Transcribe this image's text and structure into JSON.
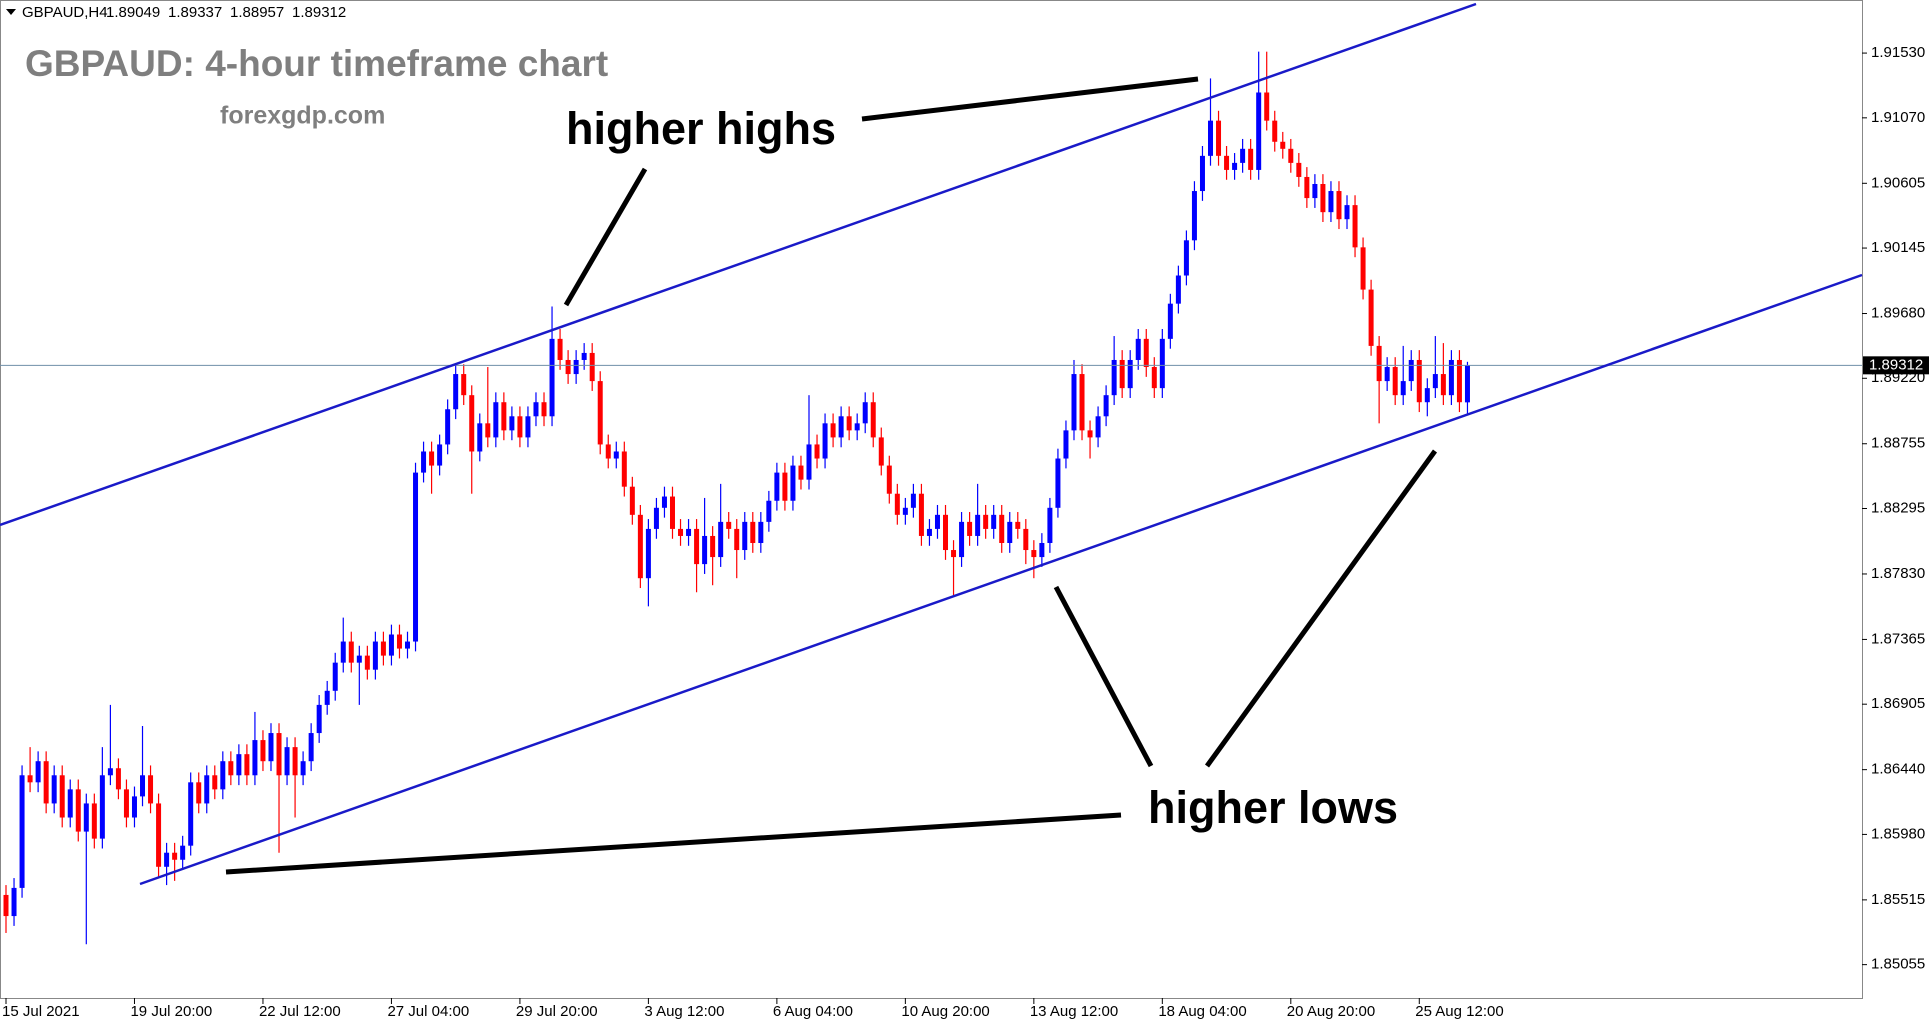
{
  "chart_data": {
    "type": "candlestick",
    "symbol": "GBPAUD,H4",
    "title": "GBPAUD: 4-hour timeframe chart",
    "subtitle": "forexgdp.com",
    "annotations": [
      "higher highs",
      "higher lows"
    ],
    "up_color": "#0000ff",
    "down_color": "#ff0000",
    "ylim": [
      1.84818,
      1.91907
    ],
    "yticks": [
      {
        "value": 1.9153,
        "label": "1.91530"
      },
      {
        "value": 1.9107,
        "label": "1.91070"
      },
      1.90605,
      1.90145,
      {
        "value": 1.8968,
        "label": "1.89680"
      },
      {
        "value": 1.8922,
        "label": "1.89220"
      },
      1.88755,
      1.88295,
      {
        "value": 1.8783,
        "label": "1.87830"
      },
      1.87365,
      1.86905,
      {
        "value": 1.8644,
        "label": "1.86440"
      },
      {
        "value": 1.8598,
        "label": "1.85980"
      },
      1.85515,
      1.85055
    ],
    "categories": [
      "15 Jul 2021",
      null,
      null,
      null,
      null,
      null,
      null,
      null,
      null,
      null,
      null,
      null,
      null,
      null,
      null,
      null,
      "19 Jul 20:00",
      null,
      null,
      null,
      null,
      null,
      null,
      null,
      null,
      null,
      null,
      null,
      null,
      null,
      null,
      null,
      "22 Jul 12:00",
      null,
      null,
      null,
      null,
      null,
      null,
      null,
      null,
      null,
      null,
      null,
      null,
      null,
      null,
      null,
      "27 Jul 04:00",
      null,
      null,
      null,
      null,
      null,
      null,
      null,
      null,
      null,
      null,
      null,
      null,
      null,
      null,
      null,
      "29 Jul 20:00",
      null,
      null,
      null,
      null,
      null,
      null,
      null,
      null,
      null,
      null,
      null,
      null,
      null,
      null,
      null,
      "3 Aug 12:00",
      null,
      null,
      null,
      null,
      null,
      null,
      null,
      null,
      null,
      null,
      null,
      null,
      null,
      null,
      null,
      "6 Aug 04:00",
      null,
      null,
      null,
      null,
      null,
      null,
      null,
      null,
      null,
      null,
      null,
      null,
      null,
      null,
      null,
      "10 Aug 20:00",
      null,
      null,
      null,
      null,
      null,
      null,
      null,
      null,
      null,
      null,
      null,
      null,
      null,
      null,
      null,
      "13 Aug 12:00",
      null,
      null,
      null,
      null,
      null,
      null,
      null,
      null,
      null,
      null,
      null,
      null,
      null,
      null,
      null,
      "18 Aug 04:00",
      null,
      null,
      null,
      null,
      null,
      null,
      null,
      null,
      null,
      null,
      null,
      null,
      null,
      null,
      null,
      "20 Aug 20:00",
      null,
      null,
      null,
      null,
      null,
      null,
      null,
      null,
      null,
      null,
      null,
      null,
      null,
      null,
      null,
      "25 Aug 12:00",
      null,
      null,
      null,
      null,
      null,
      null
    ],
    "ohlc": [
      [
        1.8555,
        1.8562,
        1.8528,
        1.854
      ],
      [
        1.854,
        1.8567,
        1.8533,
        1.856
      ],
      [
        1.856,
        1.8647,
        1.8553,
        1.864
      ],
      [
        1.864,
        1.866,
        1.8628,
        1.8635
      ],
      [
        1.8635,
        1.8657,
        1.8628,
        1.865
      ],
      [
        1.865,
        1.8657,
        1.8613,
        1.862
      ],
      [
        1.862,
        1.8647,
        1.8613,
        1.864
      ],
      [
        1.864,
        1.8647,
        1.8603,
        1.861
      ],
      [
        1.861,
        1.8637,
        1.8603,
        1.863
      ],
      [
        1.863,
        1.8637,
        1.8593,
        1.86
      ],
      [
        1.86,
        1.8627,
        1.852,
        1.862
      ],
      [
        1.862,
        1.8627,
        1.8588,
        1.8595
      ],
      [
        1.8595,
        1.866,
        1.8588,
        1.864
      ],
      [
        1.864,
        1.869,
        1.8633,
        1.8645
      ],
      [
        1.8645,
        1.8652,
        1.8623,
        1.863
      ],
      [
        1.863,
        1.8637,
        1.8603,
        1.861
      ],
      [
        1.861,
        1.8632,
        1.8603,
        1.8625
      ],
      [
        1.8625,
        1.8675,
        1.8618,
        1.864
      ],
      [
        1.864,
        1.8647,
        1.8613,
        1.862
      ],
      [
        1.862,
        1.8627,
        1.8568,
        1.8575
      ],
      [
        1.8575,
        1.8592,
        1.8562,
        1.8585
      ],
      [
        1.8585,
        1.8592,
        1.8565,
        1.858
      ],
      [
        1.858,
        1.8597,
        1.8573,
        1.859
      ],
      [
        1.859,
        1.8642,
        1.8583,
        1.8635
      ],
      [
        1.8635,
        1.8642,
        1.8613,
        1.862
      ],
      [
        1.862,
        1.8647,
        1.8613,
        1.864
      ],
      [
        1.864,
        1.8647,
        1.8623,
        1.863
      ],
      [
        1.863,
        1.8657,
        1.8623,
        1.865
      ],
      [
        1.865,
        1.8657,
        1.8633,
        1.864
      ],
      [
        1.864,
        1.8662,
        1.8633,
        1.8655
      ],
      [
        1.8655,
        1.8662,
        1.8633,
        1.864
      ],
      [
        1.864,
        1.8685,
        1.8633,
        1.8665
      ],
      [
        1.8665,
        1.8672,
        1.8643,
        1.865
      ],
      [
        1.865,
        1.8677,
        1.8643,
        1.867
      ],
      [
        1.867,
        1.8677,
        1.8585,
        1.864
      ],
      [
        1.864,
        1.8667,
        1.8633,
        1.866
      ],
      [
        1.866,
        1.8667,
        1.861,
        1.864
      ],
      [
        1.864,
        1.8657,
        1.8633,
        1.865
      ],
      [
        1.865,
        1.8677,
        1.8643,
        1.867
      ],
      [
        1.867,
        1.8697,
        1.8663,
        1.869
      ],
      [
        1.869,
        1.8707,
        1.8683,
        1.87
      ],
      [
        1.87,
        1.8727,
        1.8693,
        1.872
      ],
      [
        1.872,
        1.8752,
        1.8713,
        1.8735
      ],
      [
        1.8735,
        1.8742,
        1.8713,
        1.872
      ],
      [
        1.872,
        1.8732,
        1.869,
        1.8725
      ],
      [
        1.8725,
        1.8732,
        1.8708,
        1.8715
      ],
      [
        1.8715,
        1.8742,
        1.8708,
        1.8735
      ],
      [
        1.8735,
        1.8742,
        1.8718,
        1.8725
      ],
      [
        1.8725,
        1.8747,
        1.8718,
        1.874
      ],
      [
        1.874,
        1.8747,
        1.8723,
        1.873
      ],
      [
        1.873,
        1.8742,
        1.8723,
        1.8735
      ],
      [
        1.8735,
        1.8862,
        1.8728,
        1.8855
      ],
      [
        1.8855,
        1.8877,
        1.8848,
        1.887
      ],
      [
        1.887,
        1.8877,
        1.884,
        1.886
      ],
      [
        1.886,
        1.8882,
        1.8853,
        1.8875
      ],
      [
        1.8875,
        1.8907,
        1.8868,
        1.89
      ],
      [
        1.89,
        1.8932,
        1.8893,
        1.8925
      ],
      [
        1.8925,
        1.8932,
        1.8903,
        1.891
      ],
      [
        1.891,
        1.8917,
        1.884,
        1.887
      ],
      [
        1.887,
        1.8897,
        1.8863,
        1.889
      ],
      [
        1.889,
        1.893,
        1.8873,
        1.888
      ],
      [
        1.888,
        1.8912,
        1.8873,
        1.8905
      ],
      [
        1.8905,
        1.8912,
        1.8878,
        1.8885
      ],
      [
        1.8885,
        1.8902,
        1.8878,
        1.8895
      ],
      [
        1.8895,
        1.8902,
        1.8873,
        1.888
      ],
      [
        1.888,
        1.8902,
        1.8873,
        1.8895
      ],
      [
        1.8895,
        1.8912,
        1.8888,
        1.8905
      ],
      [
        1.8905,
        1.8912,
        1.8888,
        1.8895
      ],
      [
        1.8895,
        1.8973,
        1.8888,
        1.895
      ],
      [
        1.895,
        1.8957,
        1.8928,
        1.8935
      ],
      [
        1.8935,
        1.8942,
        1.8918,
        1.8925
      ],
      [
        1.8925,
        1.8942,
        1.8918,
        1.8935
      ],
      [
        1.8935,
        1.8947,
        1.8928,
        1.894
      ],
      [
        1.894,
        1.8947,
        1.8913,
        1.892
      ],
      [
        1.892,
        1.8927,
        1.8868,
        1.8875
      ],
      [
        1.8875,
        1.8882,
        1.8858,
        1.8865
      ],
      [
        1.8865,
        1.8877,
        1.8858,
        1.887
      ],
      [
        1.887,
        1.8877,
        1.8838,
        1.8845
      ],
      [
        1.8845,
        1.8852,
        1.8818,
        1.8825
      ],
      [
        1.8825,
        1.8832,
        1.8773,
        1.878
      ],
      [
        1.878,
        1.8822,
        1.876,
        1.8815
      ],
      [
        1.8815,
        1.8837,
        1.8808,
        1.883
      ],
      [
        1.883,
        1.8845,
        1.8823,
        1.8838
      ],
      [
        1.8838,
        1.8845,
        1.8808,
        1.8815
      ],
      [
        1.8815,
        1.8822,
        1.8803,
        1.881
      ],
      [
        1.881,
        1.8822,
        1.8803,
        1.8815
      ],
      [
        1.8815,
        1.8822,
        1.877,
        1.879
      ],
      [
        1.879,
        1.8837,
        1.8783,
        1.881
      ],
      [
        1.881,
        1.8817,
        1.8775,
        1.8795
      ],
      [
        1.8795,
        1.8847,
        1.8788,
        1.882
      ],
      [
        1.882,
        1.8827,
        1.8808,
        1.8815
      ],
      [
        1.8815,
        1.8822,
        1.878,
        1.88
      ],
      [
        1.88,
        1.8827,
        1.8793,
        1.882
      ],
      [
        1.882,
        1.8827,
        1.8798,
        1.8805
      ],
      [
        1.8805,
        1.8827,
        1.8798,
        1.882
      ],
      [
        1.882,
        1.8842,
        1.8813,
        1.8835
      ],
      [
        1.8835,
        1.8862,
        1.8828,
        1.8855
      ],
      [
        1.8855,
        1.8862,
        1.8828,
        1.8835
      ],
      [
        1.8835,
        1.8867,
        1.8828,
        1.886
      ],
      [
        1.886,
        1.8867,
        1.8843,
        1.885
      ],
      [
        1.885,
        1.891,
        1.8843,
        1.8875
      ],
      [
        1.8875,
        1.8882,
        1.8858,
        1.8865
      ],
      [
        1.8865,
        1.8897,
        1.8858,
        1.889
      ],
      [
        1.889,
        1.8897,
        1.8873,
        1.888
      ],
      [
        1.888,
        1.8902,
        1.8873,
        1.8895
      ],
      [
        1.8895,
        1.8902,
        1.8878,
        1.8885
      ],
      [
        1.8885,
        1.8897,
        1.8878,
        1.889
      ],
      [
        1.889,
        1.8912,
        1.8883,
        1.8905
      ],
      [
        1.8905,
        1.8912,
        1.8873,
        1.888
      ],
      [
        1.888,
        1.8887,
        1.8853,
        1.886
      ],
      [
        1.886,
        1.8867,
        1.8833,
        1.884
      ],
      [
        1.884,
        1.8847,
        1.8818,
        1.8825
      ],
      [
        1.8825,
        1.8837,
        1.8818,
        1.883
      ],
      [
        1.883,
        1.8847,
        1.8823,
        1.884
      ],
      [
        1.884,
        1.8847,
        1.8803,
        1.881
      ],
      [
        1.881,
        1.8822,
        1.8803,
        1.8815
      ],
      [
        1.8815,
        1.8832,
        1.8808,
        1.8825
      ],
      [
        1.8825,
        1.8832,
        1.8793,
        1.88
      ],
      [
        1.88,
        1.8807,
        1.8768,
        1.8795
      ],
      [
        1.8795,
        1.8827,
        1.8788,
        1.882
      ],
      [
        1.882,
        1.8827,
        1.8803,
        1.881
      ],
      [
        1.881,
        1.8847,
        1.8803,
        1.8825
      ],
      [
        1.8825,
        1.8832,
        1.8808,
        1.8815
      ],
      [
        1.8815,
        1.8832,
        1.8808,
        1.8825
      ],
      [
        1.8825,
        1.8832,
        1.8798,
        1.8805
      ],
      [
        1.8805,
        1.8827,
        1.8798,
        1.882
      ],
      [
        1.882,
        1.8827,
        1.8808,
        1.8815
      ],
      [
        1.8815,
        1.8822,
        1.879,
        1.88
      ],
      [
        1.88,
        1.8807,
        1.878,
        1.8795
      ],
      [
        1.8795,
        1.8812,
        1.8788,
        1.8805
      ],
      [
        1.8805,
        1.8837,
        1.8798,
        1.883
      ],
      [
        1.883,
        1.8872,
        1.8823,
        1.8865
      ],
      [
        1.8865,
        1.8892,
        1.8858,
        1.8885
      ],
      [
        1.8885,
        1.8935,
        1.8878,
        1.8925
      ],
      [
        1.8925,
        1.8932,
        1.8878,
        1.8885
      ],
      [
        1.8885,
        1.8892,
        1.8865,
        1.888
      ],
      [
        1.888,
        1.8902,
        1.8873,
        1.8895
      ],
      [
        1.8895,
        1.8917,
        1.8888,
        1.891
      ],
      [
        1.891,
        1.8952,
        1.8903,
        1.8935
      ],
      [
        1.8935,
        1.8942,
        1.8908,
        1.8915
      ],
      [
        1.8915,
        1.8942,
        1.8908,
        1.8935
      ],
      [
        1.8935,
        1.8957,
        1.8928,
        1.895
      ],
      [
        1.895,
        1.8957,
        1.8923,
        1.893
      ],
      [
        1.893,
        1.8937,
        1.8908,
        1.8915
      ],
      [
        1.8915,
        1.8957,
        1.8908,
        1.895
      ],
      [
        1.895,
        1.8982,
        1.8943,
        1.8975
      ],
      [
        1.8975,
        1.9002,
        1.8968,
        1.8995
      ],
      [
        1.8995,
        1.9027,
        1.8988,
        1.902
      ],
      [
        1.902,
        1.9062,
        1.9013,
        1.9055
      ],
      [
        1.9055,
        1.9087,
        1.9048,
        1.908
      ],
      [
        1.908,
        1.9135,
        1.9073,
        1.9105
      ],
      [
        1.9105,
        1.9112,
        1.9073,
        1.908
      ],
      [
        1.908,
        1.9087,
        1.9063,
        1.907
      ],
      [
        1.907,
        1.9082,
        1.9063,
        1.9075
      ],
      [
        1.9075,
        1.9092,
        1.9068,
        1.9085
      ],
      [
        1.9085,
        1.9092,
        1.9063,
        1.907
      ],
      [
        1.907,
        1.9154,
        1.9063,
        1.9125
      ],
      [
        1.9125,
        1.9154,
        1.9098,
        1.9105
      ],
      [
        1.9105,
        1.9112,
        1.9083,
        1.909
      ],
      [
        1.909,
        1.9097,
        1.9078,
        1.9085
      ],
      [
        1.9085,
        1.9092,
        1.9068,
        1.9075
      ],
      [
        1.9075,
        1.9082,
        1.9058,
        1.9065
      ],
      [
        1.9065,
        1.9072,
        1.9043,
        1.905
      ],
      [
        1.905,
        1.9067,
        1.9043,
        1.906
      ],
      [
        1.906,
        1.9067,
        1.9033,
        1.904
      ],
      [
        1.904,
        1.9062,
        1.9033,
        1.9055
      ],
      [
        1.9055,
        1.9062,
        1.9028,
        1.9035
      ],
      [
        1.9035,
        1.9052,
        1.9028,
        1.9045
      ],
      [
        1.9045,
        1.9052,
        1.9008,
        1.9015
      ],
      [
        1.9015,
        1.9022,
        1.8978,
        1.8985
      ],
      [
        1.8985,
        1.8992,
        1.8938,
        1.8945
      ],
      [
        1.8945,
        1.8952,
        1.889,
        1.892
      ],
      [
        1.892,
        1.8937,
        1.8913,
        1.893
      ],
      [
        1.893,
        1.8937,
        1.8903,
        1.891
      ],
      [
        1.891,
        1.8945,
        1.8903,
        1.892
      ],
      [
        1.892,
        1.8942,
        1.8913,
        1.8935
      ],
      [
        1.8935,
        1.8942,
        1.8898,
        1.8905
      ],
      [
        1.8905,
        1.8922,
        1.8895,
        1.8915
      ],
      [
        1.8915,
        1.8952,
        1.8908,
        1.8925
      ],
      [
        1.8925,
        1.8947,
        1.8903,
        1.891
      ],
      [
        1.891,
        1.8942,
        1.8903,
        1.8935
      ],
      [
        1.8935,
        1.8942,
        1.8898,
        1.8905
      ],
      [
        1.89049,
        1.89337,
        1.88957,
        1.89312
      ]
    ]
  }
}
